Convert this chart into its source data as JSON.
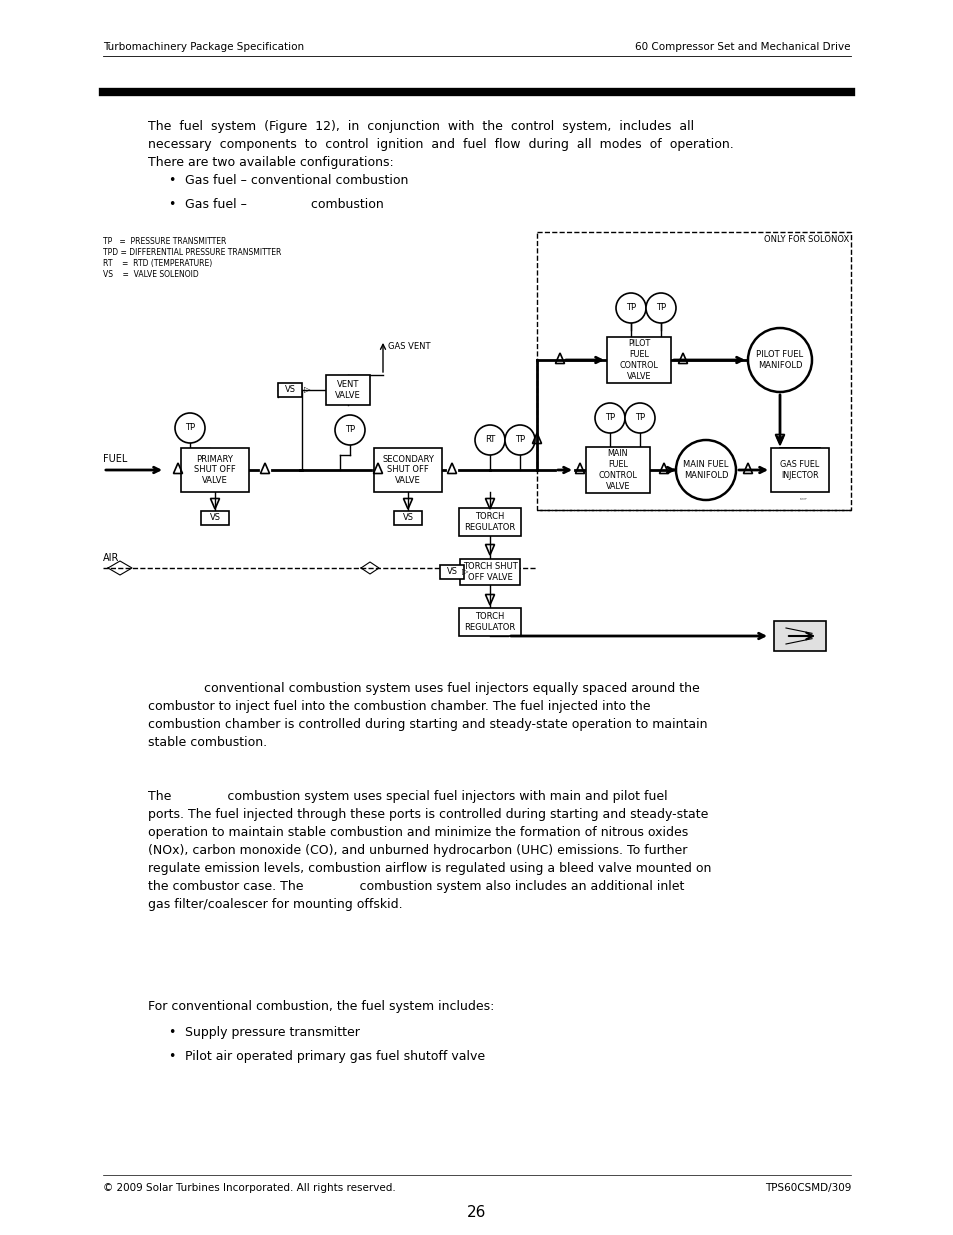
{
  "header_left": "Turbomachinery Package Specification",
  "header_right": "60 Compressor Set and Mechanical Drive",
  "footer_left": "© 2009 Solar Turbines Incorporated. All rights reserved.",
  "footer_right": "TPS60CSMD/309",
  "page_number": "26",
  "bullet1": "Gas fuel – conventional combustion",
  "bullet2": "Gas fuel –                combustion",
  "conventional_conclusion": "For conventional combustion, the fuel system includes:",
  "bullet_c1": "Supply pressure transmitter",
  "bullet_c2": "Pilot air operated primary gas fuel shutoff valve",
  "bg_color": "#ffffff",
  "text_color": "#000000"
}
